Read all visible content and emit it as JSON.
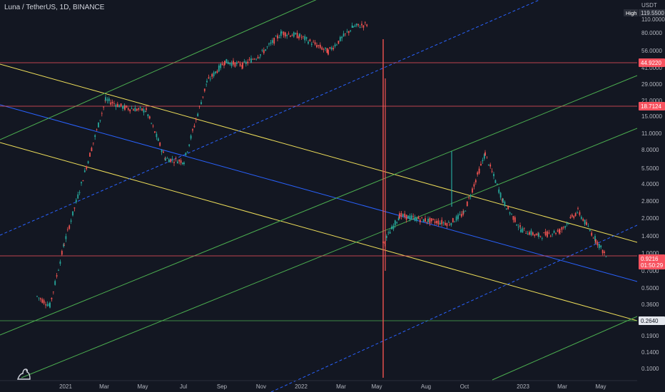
{
  "header": {
    "title": "Luna / TetherUS, 1D, BINANCE"
  },
  "axis": {
    "currency": "USDT",
    "high_badge": "High",
    "high_value": "119.5500",
    "y_ticks": [
      "110.0000",
      "80.0000",
      "56.0000",
      "41.0000",
      "29.0000",
      "21.0000",
      "15.0000",
      "11.0000",
      "8.0000",
      "5.5000",
      "4.0000",
      "2.8000",
      "2.0000",
      "1.4000",
      "1.0000",
      "0.7000",
      "0.5000",
      "0.3600",
      "0.2640",
      "0.1900",
      "0.1400",
      "0.1000"
    ],
    "x_ticks": [
      "2021",
      "Mar",
      "May",
      "Jul",
      "Sep",
      "Nov",
      "2022",
      "Mar",
      "May",
      "Aug",
      "Oct",
      "2023",
      "Mar",
      "May"
    ]
  },
  "price_labels": [
    {
      "text": "44.9220",
      "color": "#f7525f"
    },
    {
      "text": "18.7124",
      "color": "#f7525f"
    },
    {
      "text": "0.9216",
      "color": "#f7525f"
    },
    {
      "text": "01:50:29",
      "color": "#f7525f"
    },
    {
      "text": "0.2640",
      "color": "#1e222d"
    }
  ],
  "chart_data": {
    "type": "line",
    "scale": "log",
    "ylim": [
      0.075,
      125
    ],
    "x": [
      "2020-12-01",
      "2021-01-01",
      "2021-02-01",
      "2021-03-01",
      "2021-04-01",
      "2021-05-01",
      "2021-06-01",
      "2021-07-01",
      "2021-08-01",
      "2021-09-01",
      "2021-10-01",
      "2021-11-01",
      "2021-12-01",
      "2022-01-01",
      "2022-02-01",
      "2022-03-01",
      "2022-04-01",
      "2022-05-01",
      "2022-06-01",
      "2022-07-01",
      "2022-08-01",
      "2022-09-01",
      "2022-10-01",
      "2022-11-01",
      "2022-12-01",
      "2023-01-01",
      "2023-02-01",
      "2023-03-01",
      "2023-04-01",
      "2023-05-01"
    ],
    "series": [
      {
        "values": [
          0.42,
          0.35,
          1.2,
          21,
          18,
          17,
          6.5,
          6.2,
          30,
          45,
          42,
          52,
          80,
          75,
          55,
          90,
          95,
          0.0002,
          2.1,
          1.9,
          1.8,
          2.2,
          7.2,
          2.8,
          1.6,
          1.4,
          1.55,
          2.3,
          1.3,
          0.92
        ],
        "color": "#26a69a"
      }
    ],
    "horizontal_lines": [
      44.922,
      18.7124,
      0.9216,
      0.264
    ],
    "colors": {
      "up": "#26a69a",
      "down": "#ef5350",
      "yellow": "#f0e05a",
      "green": "#4caf50",
      "blue": "#2962ff",
      "hline": "#f7525f"
    }
  }
}
